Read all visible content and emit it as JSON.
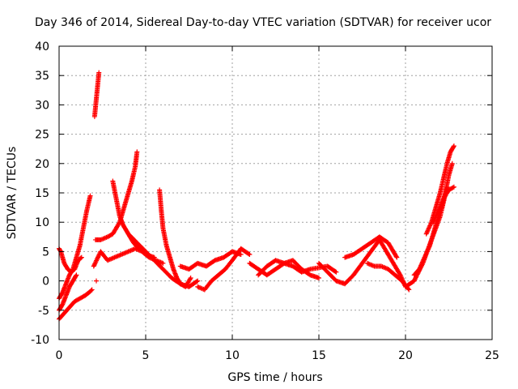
{
  "chart_data": {
    "type": "scatter",
    "title": "Day 346 of 2014, Sidereal Day-to-day VTEC variation (SDTVAR) for receiver ucor",
    "xlabel": "GPS time / hours",
    "ylabel": "SDTVAR / TECUs",
    "xlim": [
      0,
      25
    ],
    "ylim": [
      -10,
      40
    ],
    "xticks": [
      0,
      5,
      10,
      15,
      20,
      25
    ],
    "yticks": [
      -10,
      -5,
      0,
      5,
      10,
      15,
      20,
      25,
      30,
      35,
      40
    ],
    "grid": true,
    "marker": "+",
    "series_color": "#ff0000",
    "series": [
      {
        "name": "s1",
        "x": [
          0.0,
          0.2,
          0.4,
          0.6,
          0.8,
          1.0,
          1.2,
          1.4,
          1.6,
          1.8
        ],
        "y": [
          -3.0,
          -2.0,
          -0.5,
          1.0,
          2.0,
          4.0,
          6.0,
          9.0,
          12.0,
          14.5
        ]
      },
      {
        "name": "s2",
        "x": [
          0.0,
          0.1,
          0.3,
          0.5,
          0.7,
          0.9,
          1.1,
          1.3
        ],
        "y": [
          5.5,
          5.0,
          3.0,
          2.0,
          1.5,
          2.0,
          3.5,
          4.0
        ]
      },
      {
        "name": "s3",
        "x": [
          0.0,
          0.3,
          0.6,
          0.9,
          1.2,
          1.5,
          1.8,
          1.9
        ],
        "y": [
          -6.5,
          -5.5,
          -4.5,
          -3.5,
          -3.0,
          -2.5,
          -1.8,
          -1.5
        ]
      },
      {
        "name": "s4",
        "x": [
          0.0,
          0.2,
          0.4,
          0.6,
          0.8,
          1.0
        ],
        "y": [
          -5.0,
          -4.0,
          -2.5,
          -1.0,
          0.0,
          1.0
        ]
      },
      {
        "name": "s5",
        "x": [
          2.05,
          2.1,
          2.15,
          2.2,
          2.25,
          2.3
        ],
        "y": [
          28.0,
          29.5,
          31.0,
          32.5,
          34.0,
          35.5
        ]
      },
      {
        "name": "s6",
        "x": [
          2.1,
          2.4,
          2.8,
          3.1,
          3.5,
          3.8,
          4.0,
          4.2,
          4.4,
          4.5
        ],
        "y": [
          7.0,
          7.0,
          7.5,
          8.0,
          10.0,
          13.0,
          15.0,
          17.0,
          19.5,
          22.0
        ]
      },
      {
        "name": "s7",
        "x": [
          3.1,
          3.3,
          3.5,
          3.7,
          3.9,
          4.1,
          4.3,
          4.6,
          5.0,
          5.5
        ],
        "y": [
          17.0,
          14.0,
          11.0,
          9.5,
          8.5,
          7.5,
          6.5,
          5.5,
          4.5,
          4.0
        ]
      },
      {
        "name": "s8",
        "x": [
          2.0,
          2.4,
          2.8,
          3.2,
          3.6,
          4.0,
          4.4,
          4.8,
          5.2,
          5.6,
          6.0
        ],
        "y": [
          2.5,
          5.0,
          3.5,
          4.0,
          4.5,
          5.0,
          5.5,
          5.0,
          4.0,
          3.5,
          3.0
        ]
      },
      {
        "name": "s9",
        "x": [
          5.8,
          5.9,
          6.0,
          6.2,
          6.4,
          6.6,
          6.8,
          7.0,
          7.3,
          7.6
        ],
        "y": [
          15.5,
          12.0,
          9.0,
          6.0,
          4.0,
          2.0,
          0.5,
          -0.5,
          -1.0,
          0.5
        ]
      },
      {
        "name": "s10",
        "x": [
          4.0,
          4.5,
          5.0,
          5.5,
          6.0,
          6.5,
          7.0,
          7.5,
          8.0
        ],
        "y": [
          8.0,
          6.5,
          5.0,
          3.5,
          2.0,
          0.5,
          -0.5,
          -1.0,
          0.0
        ]
      },
      {
        "name": "s11",
        "x": [
          7.0,
          7.5,
          8.0,
          8.5,
          9.0,
          9.5,
          10.0,
          10.5
        ],
        "y": [
          2.5,
          2.0,
          3.0,
          2.5,
          3.5,
          4.0,
          5.0,
          4.5
        ]
      },
      {
        "name": "s12",
        "x": [
          8.0,
          8.4,
          8.8,
          9.2,
          9.6,
          10.0,
          10.5,
          11.0
        ],
        "y": [
          -1.0,
          -1.5,
          0.0,
          1.0,
          2.0,
          3.5,
          5.5,
          4.5
        ]
      },
      {
        "name": "s13",
        "x": [
          11.0,
          11.5,
          12.0,
          12.5,
          13.0,
          13.5,
          14.0,
          14.5,
          15.0
        ],
        "y": [
          3.0,
          2.0,
          1.0,
          2.0,
          3.0,
          3.5,
          2.0,
          1.0,
          0.5
        ]
      },
      {
        "name": "s14",
        "x": [
          11.5,
          12.0,
          12.5,
          13.0,
          13.5,
          14.0,
          14.5,
          15.5,
          16.0
        ],
        "y": [
          1.0,
          2.5,
          3.5,
          3.0,
          2.5,
          1.5,
          2.0,
          2.5,
          1.5
        ]
      },
      {
        "name": "s15",
        "x": [
          15.0,
          15.5,
          16.0,
          16.5,
          17.0,
          17.5,
          18.0,
          18.5
        ],
        "y": [
          3.0,
          1.5,
          0.0,
          -0.5,
          1.0,
          3.0,
          5.0,
          7.0
        ]
      },
      {
        "name": "s16",
        "x": [
          16.5,
          17.0,
          17.5,
          18.0,
          18.5,
          19.0,
          19.5
        ],
        "y": [
          4.0,
          4.5,
          5.5,
          6.5,
          7.5,
          6.5,
          4.0
        ]
      },
      {
        "name": "s17",
        "x": [
          17.8,
          18.2,
          18.6,
          19.0,
          19.4,
          19.8,
          20.2
        ],
        "y": [
          3.0,
          2.5,
          2.5,
          2.0,
          1.0,
          0.0,
          -1.5
        ]
      },
      {
        "name": "s18",
        "x": [
          18.5,
          18.9,
          19.3,
          19.7,
          20.0,
          20.5,
          21.0,
          21.5,
          22.0,
          22.4
        ],
        "y": [
          7.0,
          5.0,
          3.0,
          1.0,
          -1.0,
          0.0,
          3.0,
          7.0,
          11.0,
          16.0
        ]
      },
      {
        "name": "s19",
        "x": [
          20.5,
          20.8,
          21.1,
          21.4,
          21.7,
          22.0,
          22.3,
          22.5,
          22.7
        ],
        "y": [
          1.0,
          2.0,
          4.0,
          6.0,
          9.0,
          12.0,
          15.0,
          18.0,
          20.0
        ]
      },
      {
        "name": "s20",
        "x": [
          21.2,
          21.5,
          21.8,
          22.0,
          22.2,
          22.4,
          22.6,
          22.8
        ],
        "y": [
          8.0,
          10.0,
          13.0,
          15.0,
          17.5,
          20.0,
          22.0,
          23.0
        ]
      },
      {
        "name": "s21",
        "x": [
          21.6,
          21.9,
          22.2,
          22.5,
          22.8
        ],
        "y": [
          10.0,
          12.0,
          14.0,
          15.5,
          16.0
        ]
      },
      {
        "name": "s22",
        "x": [
          2.15
        ],
        "y": [
          0.0
        ]
      }
    ]
  }
}
